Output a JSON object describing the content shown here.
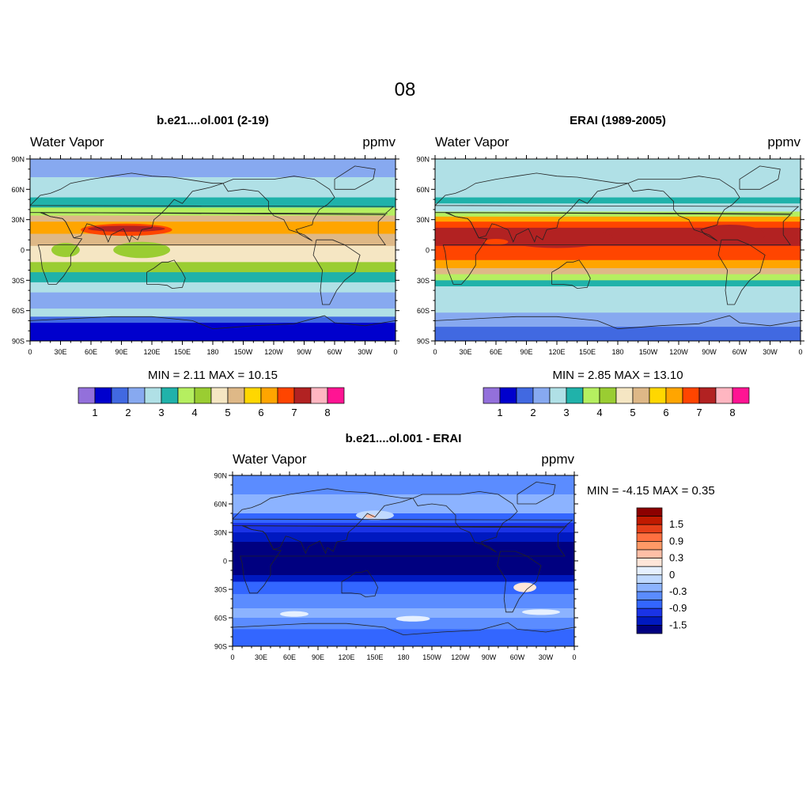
{
  "page": {
    "title": "08"
  },
  "chart_data": [
    {
      "type": "heatmap",
      "title": "b.e21....ol.001 (2-19)",
      "left_label": "Water Vapor",
      "right_label": "ppmv",
      "min_max": "MIN =   2.11  MAX =  10.15",
      "lat_ticks": [
        "90N",
        "60N",
        "30N",
        "0",
        "30S",
        "60S",
        "90S"
      ],
      "lon_ticks": [
        "0",
        "30E",
        "60E",
        "90E",
        "120E",
        "150E",
        "180",
        "150W",
        "120W",
        "90W",
        "60W",
        "30W",
        "0"
      ],
      "colorbar_labels": [
        "1",
        "2",
        "3",
        "4",
        "5",
        "6",
        "7",
        "8"
      ],
      "bands": [
        {
          "lat": [
            90,
            72
          ],
          "level": 4
        },
        {
          "lat": [
            72,
            52
          ],
          "level": 5
        },
        {
          "lat": [
            52,
            42
          ],
          "level": 6
        },
        {
          "lat": [
            42,
            34
          ],
          "level": 7
        },
        {
          "lat": [
            34,
            28
          ],
          "level": 10
        },
        {
          "lat": [
            28,
            16
          ],
          "level": 12
        },
        {
          "lat": [
            16,
            4
          ],
          "level": 10
        },
        {
          "lat": [
            4,
            -12
          ],
          "level": 9
        },
        {
          "lat": [
            -12,
            -22
          ],
          "level": 8
        },
        {
          "lat": [
            -22,
            -32
          ],
          "level": 6
        },
        {
          "lat": [
            -32,
            -42
          ],
          "level": 5
        },
        {
          "lat": [
            -42,
            -58
          ],
          "level": 4
        },
        {
          "lat": [
            -58,
            -66
          ],
          "level": 5
        },
        {
          "lat": [
            -66,
            -72
          ],
          "level": 3
        },
        {
          "lat": [
            -72,
            -90
          ],
          "level": 2
        }
      ],
      "blobs": [
        {
          "lon": 95,
          "lat": 20,
          "rlon": 45,
          "rlat": 6,
          "level": 13
        },
        {
          "lon": 95,
          "lat": 21,
          "rlon": 38,
          "rlat": 3,
          "level": 14
        },
        {
          "lon": 110,
          "lat": 0,
          "rlon": 28,
          "rlat": 8,
          "level": 8
        },
        {
          "lon": 300,
          "lat": 22,
          "rlon": 30,
          "rlat": 6,
          "level": 12
        },
        {
          "lon": 35,
          "lat": 0,
          "rlon": 14,
          "rlat": 7,
          "level": 8
        }
      ]
    },
    {
      "type": "heatmap",
      "title": "ERAI (1989-2005)",
      "left_label": "Water Vapor",
      "right_label": "ppmv",
      "min_max": "MIN =   2.85  MAX =  13.10",
      "lat_ticks": [
        "90N",
        "60N",
        "30N",
        "0",
        "30S",
        "60S",
        "90S"
      ],
      "lon_ticks": [
        "0",
        "30E",
        "60E",
        "90E",
        "120E",
        "150E",
        "180",
        "150W",
        "120W",
        "90W",
        "60W",
        "30W",
        "0"
      ],
      "colorbar_labels": [
        "1",
        "2",
        "3",
        "4",
        "5",
        "6",
        "7",
        "8"
      ],
      "bands": [
        {
          "lat": [
            90,
            52
          ],
          "level": 5
        },
        {
          "lat": [
            52,
            46
          ],
          "level": 6
        },
        {
          "lat": [
            46,
            38
          ],
          "level": 5
        },
        {
          "lat": [
            38,
            33
          ],
          "level": 7
        },
        {
          "lat": [
            33,
            28
          ],
          "level": 12
        },
        {
          "lat": [
            28,
            22
          ],
          "level": 13
        },
        {
          "lat": [
            22,
            4
          ],
          "level": 14
        },
        {
          "lat": [
            4,
            -10
          ],
          "level": 13
        },
        {
          "lat": [
            -10,
            -18
          ],
          "level": 12
        },
        {
          "lat": [
            -18,
            -24
          ],
          "level": 10
        },
        {
          "lat": [
            -24,
            -30
          ],
          "level": 7
        },
        {
          "lat": [
            -30,
            -36
          ],
          "level": 6
        },
        {
          "lat": [
            -36,
            -62
          ],
          "level": 5
        },
        {
          "lat": [
            -62,
            -76
          ],
          "level": 4
        },
        {
          "lat": [
            -76,
            -90
          ],
          "level": 3
        }
      ],
      "blobs": [
        {
          "lon": 120,
          "lat": 12,
          "rlon": 55,
          "rlat": 10,
          "level": 14
        },
        {
          "lon": 290,
          "lat": 15,
          "rlon": 35,
          "rlat": 10,
          "level": 14
        },
        {
          "lon": 60,
          "lat": 8,
          "rlon": 12,
          "rlat": 3,
          "level": 13
        }
      ]
    },
    {
      "type": "heatmap",
      "title": "b.e21....ol.001 - ERAI",
      "left_label": "Water Vapor",
      "right_label": "ppmv",
      "min_max": "MIN =  -4.15  MAX =   0.35",
      "lat_ticks": [
        "90N",
        "60N",
        "30N",
        "0",
        "30S",
        "60S",
        "90S"
      ],
      "lon_ticks": [
        "0",
        "30E",
        "60E",
        "90E",
        "120E",
        "150E",
        "180",
        "150W",
        "120W",
        "90W",
        "60W",
        "30W",
        "0"
      ],
      "colorbar_labels": [
        "1.5",
        "0.9",
        "0.3",
        "0",
        "-0.3",
        "-0.9",
        "-1.5"
      ],
      "bands": [
        {
          "lat": [
            90,
            70
          ],
          "level": 4
        },
        {
          "lat": [
            70,
            50
          ],
          "level": 5
        },
        {
          "lat": [
            50,
            40
          ],
          "level": 3
        },
        {
          "lat": [
            40,
            30
          ],
          "level": 2
        },
        {
          "lat": [
            30,
            20
          ],
          "level": 1
        },
        {
          "lat": [
            20,
            -15
          ],
          "level": 0
        },
        {
          "lat": [
            -15,
            -22
          ],
          "level": 1
        },
        {
          "lat": [
            -22,
            -35
          ],
          "level": 3
        },
        {
          "lat": [
            -35,
            -50
          ],
          "level": 4
        },
        {
          "lat": [
            -50,
            -60
          ],
          "level": 5
        },
        {
          "lat": [
            -60,
            -72
          ],
          "level": 4
        },
        {
          "lat": [
            -72,
            -90
          ],
          "level": 3
        }
      ],
      "blobs": [
        {
          "lon": 150,
          "lat": 48,
          "rlon": 20,
          "rlat": 5,
          "level": 6
        },
        {
          "lon": 308,
          "lat": -28,
          "rlon": 12,
          "rlat": 5,
          "level": 8
        },
        {
          "lon": 65,
          "lat": -56,
          "rlon": 15,
          "rlat": 3,
          "level": 7
        },
        {
          "lon": 190,
          "lat": -61,
          "rlon": 18,
          "rlat": 3,
          "level": 7
        },
        {
          "lon": 325,
          "lat": -54,
          "rlon": 20,
          "rlat": 3,
          "level": 7
        },
        {
          "lon": 145,
          "lat": 47,
          "rlon": 5,
          "rlat": 2,
          "level": 9
        }
      ]
    }
  ],
  "colors": {
    "diverging": [
      "#000080",
      "#0019c0",
      "#1a33e6",
      "#3366ff",
      "#5b8cff",
      "#8cb3ff",
      "#c0d9ff",
      "#e6f0ff",
      "#ffe6d9",
      "#ffbfa6",
      "#ff9966",
      "#ff7040",
      "#e64019",
      "#c01a00",
      "#8c0000"
    ]
  }
}
